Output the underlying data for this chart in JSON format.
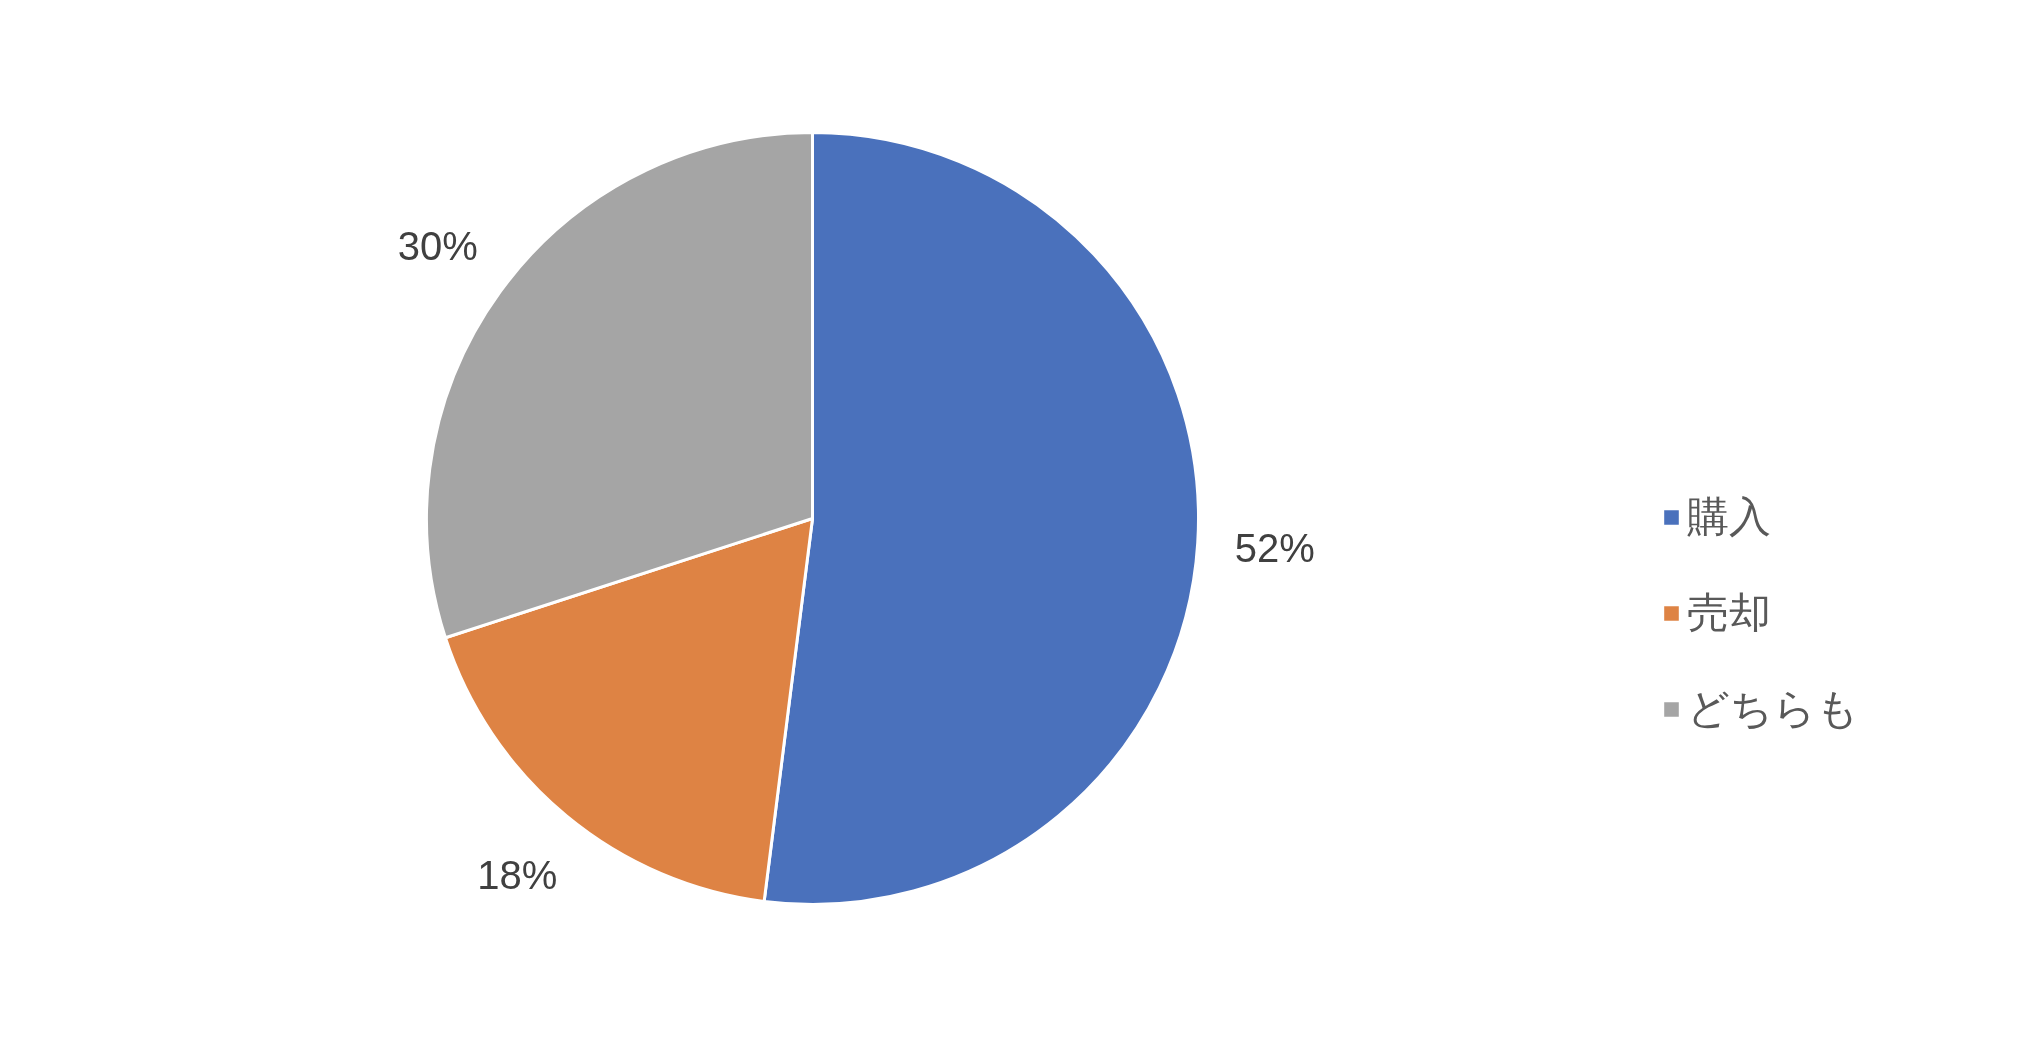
{
  "chart_data": {
    "type": "pie",
    "categories": [
      "購入",
      "売却",
      "どちらも"
    ],
    "values": [
      52,
      18,
      30
    ],
    "colors": [
      "#4a71bc",
      "#de8344",
      "#a5a5a5"
    ],
    "value_labels": [
      "52%",
      "18%",
      "30%"
    ],
    "legend": "right"
  }
}
